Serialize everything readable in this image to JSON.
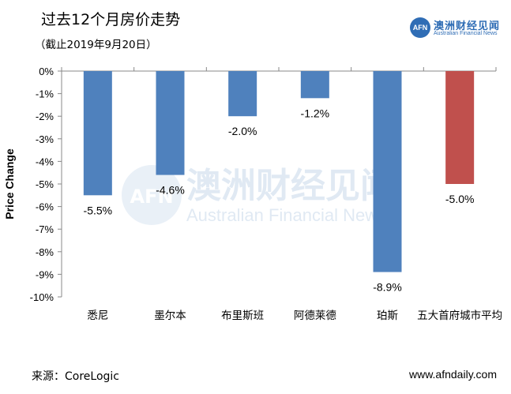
{
  "header": {
    "title": "过去12个月房价走势",
    "subtitle": "（截止2019年9月20日）"
  },
  "logo": {
    "mark": "AFN",
    "name_cn": "澳洲财经见闻",
    "name_en": "Australian Financial News"
  },
  "watermark": {
    "mark": "AFN",
    "cn": "澳洲财经见闻",
    "en": "Australian Financial News"
  },
  "footer": {
    "source": "来源：CoreLogic",
    "website": "www.afndaily.com"
  },
  "colors": {
    "bar_default": "#4f81bd",
    "bar_highlight": "#c0504d"
  },
  "chart_data": {
    "type": "bar",
    "ylabel": "Price Change",
    "ylim": [
      -10,
      0
    ],
    "yticks": [
      "0%",
      "-1%",
      "-2%",
      "-3%",
      "-4%",
      "-5%",
      "-6%",
      "-7%",
      "-8%",
      "-9%",
      "-10%"
    ],
    "categories": [
      "悉尼",
      "墨尔本",
      "布里斯班",
      "阿德莱德",
      "珀斯",
      "五大首府城市平均"
    ],
    "values": [
      -5.5,
      -4.6,
      -2.0,
      -1.2,
      -8.9,
      -5.0
    ],
    "data_labels": [
      "-5.5%",
      "-4.6%",
      "-2.0%",
      "-1.2%",
      "-8.9%",
      "-5.0%"
    ],
    "highlight_index": 5,
    "grid": false
  }
}
